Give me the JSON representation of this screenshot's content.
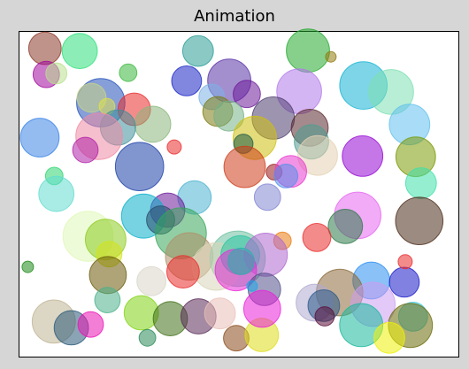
{
  "window": {
    "background_color": "#d6d6d6"
  },
  "chart_data": {
    "type": "scatter",
    "title": "Animation",
    "xlabel": "",
    "ylabel": "",
    "xlim": [
      0,
      1
    ],
    "ylim": [
      0,
      1
    ],
    "axes_visible": false,
    "grid": false,
    "legend": "none",
    "background_color": "#ffffff",
    "marker_alpha": 0.55,
    "points": [
      {
        "x": 0.059,
        "y": 0.948,
        "size": 0.037,
        "color": "#8b3a2a"
      },
      {
        "x": 0.138,
        "y": 0.94,
        "size": 0.04,
        "color": "#2ee07a"
      },
      {
        "x": 0.062,
        "y": 0.868,
        "size": 0.03,
        "color": "#a30a9e"
      },
      {
        "x": 0.085,
        "y": 0.871,
        "size": 0.024,
        "color": "#b9e08e"
      },
      {
        "x": 0.248,
        "y": 0.873,
        "size": 0.02,
        "color": "#39b83c"
      },
      {
        "x": 0.407,
        "y": 0.94,
        "size": 0.035,
        "color": "#2b9c96"
      },
      {
        "x": 0.381,
        "y": 0.848,
        "size": 0.034,
        "color": "#1a25c4"
      },
      {
        "x": 0.478,
        "y": 0.849,
        "size": 0.049,
        "color": "#5a33a6"
      },
      {
        "x": 0.518,
        "y": 0.808,
        "size": 0.031,
        "color": "#6d1b9a"
      },
      {
        "x": 0.438,
        "y": 0.799,
        "size": 0.029,
        "color": "#7bb0e6"
      },
      {
        "x": 0.657,
        "y": 0.941,
        "size": 0.049,
        "color": "#24a92e"
      },
      {
        "x": 0.709,
        "y": 0.922,
        "size": 0.012,
        "color": "#8f7a0c"
      },
      {
        "x": 0.637,
        "y": 0.816,
        "size": 0.051,
        "color": "#b179ea"
      },
      {
        "x": 0.783,
        "y": 0.834,
        "size": 0.054,
        "color": "#14b3d4"
      },
      {
        "x": 0.846,
        "y": 0.814,
        "size": 0.051,
        "color": "#7ee0b3"
      },
      {
        "x": 0.888,
        "y": 0.714,
        "size": 0.046,
        "color": "#62c0ee"
      },
      {
        "x": 0.186,
        "y": 0.781,
        "size": 0.055,
        "color": "#2350b8"
      },
      {
        "x": 0.165,
        "y": 0.796,
        "size": 0.033,
        "color": "#c9d484"
      },
      {
        "x": 0.2,
        "y": 0.77,
        "size": 0.018,
        "color": "#e0e04a"
      },
      {
        "x": 0.262,
        "y": 0.761,
        "size": 0.037,
        "color": "#ea2c2c"
      },
      {
        "x": 0.304,
        "y": 0.715,
        "size": 0.041,
        "color": "#8ab77c"
      },
      {
        "x": 0.225,
        "y": 0.705,
        "size": 0.04,
        "color": "#3e8f9a"
      },
      {
        "x": 0.182,
        "y": 0.678,
        "size": 0.053,
        "color": "#ef8aa4"
      },
      {
        "x": 0.047,
        "y": 0.674,
        "size": 0.044,
        "color": "#3c85e6"
      },
      {
        "x": 0.151,
        "y": 0.636,
        "size": 0.029,
        "color": "#b020a8"
      },
      {
        "x": 0.452,
        "y": 0.754,
        "size": 0.034,
        "color": "#7c7a10"
      },
      {
        "x": 0.477,
        "y": 0.74,
        "size": 0.034,
        "color": "#76b286"
      },
      {
        "x": 0.578,
        "y": 0.734,
        "size": 0.048,
        "color": "#4d3e6e"
      },
      {
        "x": 0.536,
        "y": 0.673,
        "size": 0.049,
        "color": "#cec00e"
      },
      {
        "x": 0.51,
        "y": 0.655,
        "size": 0.022,
        "color": "#1e5c45"
      },
      {
        "x": 0.661,
        "y": 0.704,
        "size": 0.042,
        "color": "#5a2a2e"
      },
      {
        "x": 0.665,
        "y": 0.661,
        "size": 0.039,
        "color": "#4d9d8f"
      },
      {
        "x": 0.679,
        "y": 0.619,
        "size": 0.045,
        "color": "#e6d2b4"
      },
      {
        "x": 0.781,
        "y": 0.617,
        "size": 0.046,
        "color": "#9508d4"
      },
      {
        "x": 0.902,
        "y": 0.615,
        "size": 0.045,
        "color": "#7b9a08"
      },
      {
        "x": 0.353,
        "y": 0.645,
        "size": 0.016,
        "color": "#ea2c2c"
      },
      {
        "x": 0.513,
        "y": 0.584,
        "size": 0.047,
        "color": "#cd3c1a"
      },
      {
        "x": 0.58,
        "y": 0.568,
        "size": 0.018,
        "color": "#9b1a1a"
      },
      {
        "x": 0.618,
        "y": 0.57,
        "size": 0.036,
        "color": "#e83ad0"
      },
      {
        "x": 0.607,
        "y": 0.556,
        "size": 0.027,
        "color": "#5590ea"
      },
      {
        "x": 0.274,
        "y": 0.585,
        "size": 0.055,
        "color": "#1a3fa8"
      },
      {
        "x": 0.08,
        "y": 0.556,
        "size": 0.02,
        "color": "#2ed670"
      },
      {
        "x": 0.085,
        "y": 0.501,
        "size": 0.04,
        "color": "#63dccf"
      },
      {
        "x": 0.914,
        "y": 0.534,
        "size": 0.035,
        "color": "#3ee0a8"
      },
      {
        "x": 0.565,
        "y": 0.491,
        "size": 0.03,
        "color": "#8286d2"
      },
      {
        "x": 0.399,
        "y": 0.49,
        "size": 0.038,
        "color": "#4ab2d0"
      },
      {
        "x": 0.338,
        "y": 0.451,
        "size": 0.039,
        "color": "#6d1b9a"
      },
      {
        "x": 0.283,
        "y": 0.433,
        "size": 0.05,
        "color": "#08aec8"
      },
      {
        "x": 0.322,
        "y": 0.421,
        "size": 0.032,
        "color": "#2a4a6a"
      },
      {
        "x": 0.368,
        "y": 0.38,
        "size": 0.058,
        "color": "#36a55a"
      },
      {
        "x": 0.77,
        "y": 0.435,
        "size": 0.053,
        "color": "#e666f0"
      },
      {
        "x": 0.742,
        "y": 0.401,
        "size": 0.039,
        "color": "#2e7a4a"
      },
      {
        "x": 0.91,
        "y": 0.418,
        "size": 0.054,
        "color": "#4b2c19"
      },
      {
        "x": 0.157,
        "y": 0.371,
        "size": 0.057,
        "color": "#e0f8b8"
      },
      {
        "x": 0.197,
        "y": 0.361,
        "size": 0.046,
        "color": "#8ccc20"
      },
      {
        "x": 0.205,
        "y": 0.316,
        "size": 0.029,
        "color": "#d4e21a"
      },
      {
        "x": 0.677,
        "y": 0.367,
        "size": 0.032,
        "color": "#ea2c2c"
      },
      {
        "x": 0.599,
        "y": 0.357,
        "size": 0.02,
        "color": "#ea7b10"
      },
      {
        "x": 0.387,
        "y": 0.309,
        "size": 0.054,
        "color": "#b08f68"
      },
      {
        "x": 0.497,
        "y": 0.302,
        "size": 0.063,
        "color": "#6ec0a0"
      },
      {
        "x": 0.448,
        "y": 0.278,
        "size": 0.054,
        "color": "#d8d6b8"
      },
      {
        "x": 0.503,
        "y": 0.313,
        "size": 0.044,
        "color": "#2ac4a0"
      },
      {
        "x": 0.561,
        "y": 0.314,
        "size": 0.049,
        "color": "#b068d0"
      },
      {
        "x": 0.493,
        "y": 0.267,
        "size": 0.047,
        "color": "#ea2cd8"
      },
      {
        "x": 0.505,
        "y": 0.294,
        "size": 0.03,
        "color": "#28b2a8"
      },
      {
        "x": 0.373,
        "y": 0.262,
        "size": 0.037,
        "color": "#ea2c2c"
      },
      {
        "x": 0.202,
        "y": 0.252,
        "size": 0.042,
        "color": "#6c5a0a"
      },
      {
        "x": 0.02,
        "y": 0.277,
        "size": 0.013,
        "color": "#1e8a1a"
      },
      {
        "x": 0.301,
        "y": 0.233,
        "size": 0.033,
        "color": "#d8d6c8"
      },
      {
        "x": 0.558,
        "y": 0.208,
        "size": 0.037,
        "color": "#54508a"
      },
      {
        "x": 0.53,
        "y": 0.218,
        "size": 0.012,
        "color": "#1ea8ea"
      },
      {
        "x": 0.801,
        "y": 0.235,
        "size": 0.042,
        "color": "#2a8ef0"
      },
      {
        "x": 0.876,
        "y": 0.23,
        "size": 0.034,
        "color": "#1a1aca"
      },
      {
        "x": 0.878,
        "y": 0.293,
        "size": 0.016,
        "color": "#ea2c2c"
      },
      {
        "x": 0.729,
        "y": 0.198,
        "size": 0.053,
        "color": "#8c6a3a"
      },
      {
        "x": 0.672,
        "y": 0.167,
        "size": 0.042,
        "color": "#b1aad0"
      },
      {
        "x": 0.693,
        "y": 0.158,
        "size": 0.036,
        "color": "#2a5a8a"
      },
      {
        "x": 0.695,
        "y": 0.125,
        "size": 0.022,
        "color": "#5a0e38"
      },
      {
        "x": 0.805,
        "y": 0.162,
        "size": 0.05,
        "color": "#cc9cf0"
      },
      {
        "x": 0.778,
        "y": 0.098,
        "size": 0.049,
        "color": "#18b89c"
      },
      {
        "x": 0.896,
        "y": 0.124,
        "size": 0.033,
        "color": "#3ecce0"
      },
      {
        "x": 0.89,
        "y": 0.097,
        "size": 0.05,
        "color": "#6a6a0a"
      },
      {
        "x": 0.842,
        "y": 0.059,
        "size": 0.035,
        "color": "#eef008"
      },
      {
        "x": 0.201,
        "y": 0.175,
        "size": 0.029,
        "color": "#4ab08a"
      },
      {
        "x": 0.079,
        "y": 0.109,
        "size": 0.049,
        "color": "#c0b494"
      },
      {
        "x": 0.119,
        "y": 0.09,
        "size": 0.039,
        "color": "#2a5a78"
      },
      {
        "x": 0.163,
        "y": 0.1,
        "size": 0.029,
        "color": "#ea14b4"
      },
      {
        "x": 0.278,
        "y": 0.136,
        "size": 0.039,
        "color": "#7fd414"
      },
      {
        "x": 0.344,
        "y": 0.118,
        "size": 0.039,
        "color": "#3f6f18"
      },
      {
        "x": 0.408,
        "y": 0.125,
        "size": 0.04,
        "color": "#5a2a58"
      },
      {
        "x": 0.457,
        "y": 0.134,
        "size": 0.035,
        "color": "#eac0b8"
      },
      {
        "x": 0.292,
        "y": 0.059,
        "size": 0.019,
        "color": "#2a8a5a"
      },
      {
        "x": 0.494,
        "y": 0.058,
        "size": 0.029,
        "color": "#8a4a1a"
      },
      {
        "x": 0.552,
        "y": 0.068,
        "size": 0.038,
        "color": "#dedc1a"
      },
      {
        "x": 0.553,
        "y": 0.148,
        "size": 0.042,
        "color": "#ea20d8"
      }
    ]
  }
}
